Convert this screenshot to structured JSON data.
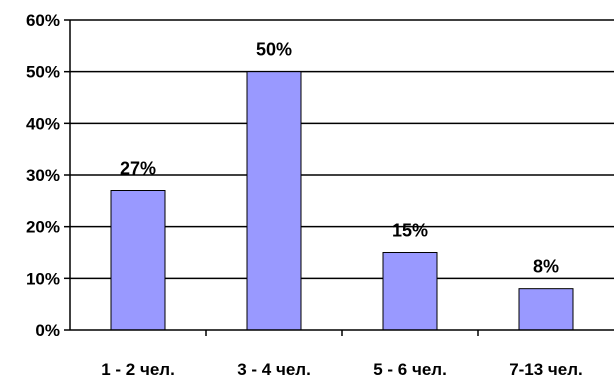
{
  "chart_data": {
    "type": "bar",
    "categories": [
      "1 - 2 чел.",
      "3 - 4 чел.",
      "5 - 6 чел.",
      "7-13 чел."
    ],
    "values": [
      27,
      50,
      15,
      8
    ],
    "data_labels": [
      "27%",
      "50%",
      "15%",
      "8%"
    ],
    "title": "",
    "xlabel": "",
    "ylabel": "",
    "ylim": [
      0,
      60
    ],
    "y_ticks": [
      0,
      10,
      20,
      30,
      40,
      50,
      60
    ],
    "y_tick_labels": [
      "0%",
      "10%",
      "20%",
      "30%",
      "40%",
      "50%",
      "60%"
    ],
    "grid": true,
    "legend": "none",
    "colors": {
      "bar_fill": "#9999ff",
      "bar_stroke": "#000000",
      "gridline": "#000000",
      "axis": "#000000"
    }
  }
}
